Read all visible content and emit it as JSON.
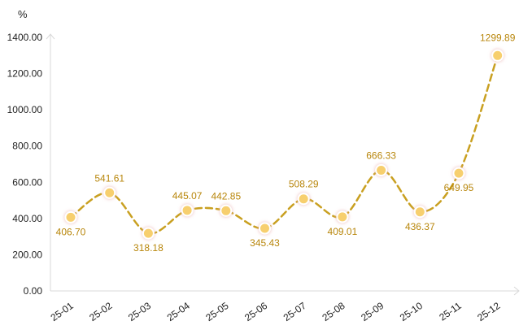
{
  "chart_data": {
    "type": "line",
    "title": "",
    "xlabel": "",
    "ylabel": "",
    "y_unit": "%",
    "categories": [
      "25-01",
      "25-02",
      "25-03",
      "25-04",
      "25-05",
      "25-06",
      "25-07",
      "25-08",
      "25-09",
      "25-10",
      "25-11",
      "25-12"
    ],
    "series": [
      {
        "values": [
          406.7,
          541.61,
          318.18,
          445.07,
          442.85,
          345.43,
          508.29,
          409.01,
          666.33,
          436.37,
          649.95,
          1299.89
        ],
        "color": "#C9A021",
        "marker_color": "#F7CF6E"
      }
    ],
    "value_labels": [
      "406.70",
      "541.61",
      "318.18",
      "445.07",
      "442.85",
      "345.43",
      "508.29",
      "409.01",
      "666.33",
      "436.37",
      "649.95",
      "1299.89"
    ],
    "label_positions": [
      "below",
      "above",
      "below",
      "above",
      "above",
      "below",
      "above",
      "below",
      "above",
      "below",
      "below",
      "above"
    ],
    "ylim": [
      0,
      1400
    ],
    "yticks": [
      0,
      200,
      400,
      600,
      800,
      1000,
      1200,
      1400
    ],
    "ytick_labels": [
      "0.00",
      "200.00",
      "400.00",
      "600.00",
      "800.00",
      "1000.00",
      "1200.00",
      "1400.00"
    ],
    "grid": false,
    "legend": "none",
    "line_style": "dashed",
    "colors": {
      "line": "#C9A021",
      "marker_fill": "#F7CF6E",
      "marker_stroke": "#ffffff",
      "label": "#B8860B",
      "axis": "#d9d9d9"
    }
  }
}
